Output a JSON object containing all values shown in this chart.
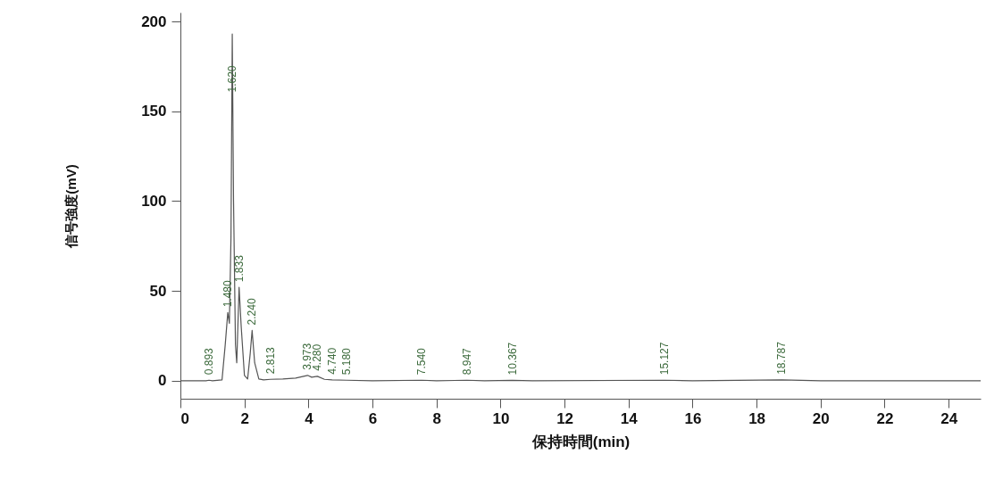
{
  "chart_data": {
    "type": "line",
    "xlabel": "保持時間(min)",
    "ylabel": "信号強度(mV)",
    "x": [
      0,
      0.8,
      0.893,
      1.0,
      1.3,
      1.4,
      1.48,
      1.53,
      1.58,
      1.62,
      1.66,
      1.72,
      1.76,
      1.833,
      1.9,
      2.0,
      2.1,
      2.18,
      2.24,
      2.32,
      2.45,
      2.6,
      2.813,
      3.2,
      3.6,
      3.973,
      4.1,
      4.28,
      4.5,
      4.74,
      5.18,
      6,
      7.54,
      8,
      8.947,
      9.5,
      10.367,
      11,
      15.127,
      16,
      18.787,
      20,
      25
    ],
    "series": [
      {
        "color": "#555555",
        "values": [
          0,
          0,
          0.3,
          0,
          0.5,
          20,
          38,
          32,
          80,
          193,
          100,
          20,
          10,
          52,
          30,
          3,
          1,
          15,
          28,
          10,
          1,
          0.5,
          0.8,
          1,
          1.5,
          3,
          2,
          2.5,
          0.8,
          0.5,
          0.3,
          0,
          0.3,
          0,
          0.3,
          0,
          0.2,
          0,
          0.3,
          0,
          0.5,
          0,
          0
        ]
      }
    ],
    "xlim": [
      0,
      25
    ],
    "xticks": [
      0,
      2,
      4,
      6,
      8,
      10,
      12,
      14,
      16,
      18,
      20,
      22,
      24
    ],
    "ylim": [
      -10,
      205
    ],
    "yticks": [
      0,
      50,
      100,
      150,
      200
    ],
    "grid": false,
    "marker": "none",
    "line_style": "solid",
    "annotations": [
      {
        "text": "0.893",
        "x": 0.893,
        "y": 0.3
      },
      {
        "text": "1.480",
        "x": 1.48,
        "y": 38
      },
      {
        "text": "1.620",
        "x": 1.62,
        "y": 168
      },
      {
        "text": "1.833",
        "x": 1.833,
        "y": 52
      },
      {
        "text": "2.240",
        "x": 2.24,
        "y": 28
      },
      {
        "text": "2.813",
        "x": 2.813,
        "y": 0.8
      },
      {
        "text": "3.973",
        "x": 3.973,
        "y": 3
      },
      {
        "text": "4.280",
        "x": 4.28,
        "y": 2.5
      },
      {
        "text": "4.740",
        "x": 4.74,
        "y": 0.5
      },
      {
        "text": "5.180",
        "x": 5.18,
        "y": 0.3
      },
      {
        "text": "7.540",
        "x": 7.54,
        "y": 0.3
      },
      {
        "text": "8.947",
        "x": 8.947,
        "y": 0.3
      },
      {
        "text": "10.367",
        "x": 10.367,
        "y": 0.2
      },
      {
        "text": "15.127",
        "x": 15.127,
        "y": 0.3
      },
      {
        "text": "18.787",
        "x": 18.787,
        "y": 0.5
      }
    ]
  }
}
